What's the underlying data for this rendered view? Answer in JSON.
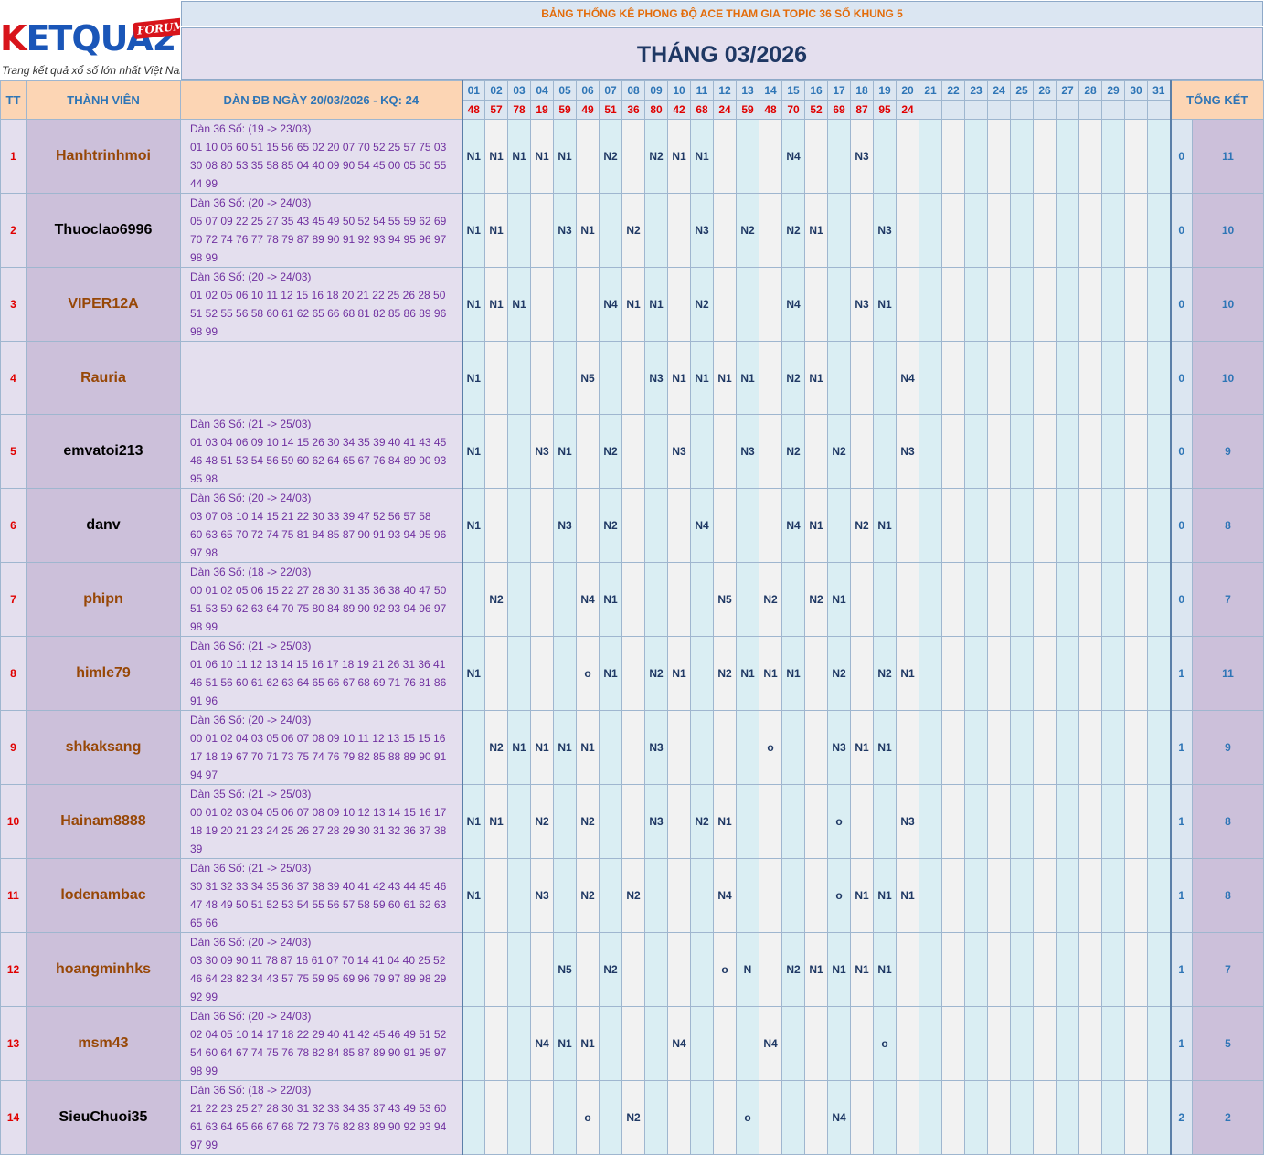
{
  "logo": {
    "big_k": "K",
    "big_rest": "ETQUA2",
    "forum": "FORUM",
    "tagline": "Trang kết quả xổ số lớn nhất Việt Nam"
  },
  "header": {
    "title": "BẢNG THỐNG KÊ PHONG ĐỘ ACE THAM GIA TOPIC 36 SỐ KHUNG 5",
    "month": "THÁNG 03/2026",
    "col_tt": "TT",
    "col_member": "THÀNH VIÊN",
    "col_dan": "DÀN ĐB NGÀY 20/03/2026 - KQ: 24",
    "col_total": "TỔNG KẾT"
  },
  "days": [
    "01",
    "02",
    "03",
    "04",
    "05",
    "06",
    "07",
    "08",
    "09",
    "10",
    "11",
    "12",
    "13",
    "14",
    "15",
    "16",
    "17",
    "18",
    "19",
    "20",
    "21",
    "22",
    "23",
    "24",
    "25",
    "26",
    "27",
    "28",
    "29",
    "30",
    "31"
  ],
  "results": [
    "48",
    "57",
    "78",
    "19",
    "59",
    "49",
    "51",
    "36",
    "80",
    "42",
    "68",
    "24",
    "59",
    "48",
    "70",
    "52",
    "69",
    "87",
    "95",
    "24",
    "",
    "",
    "",
    "",
    "",
    "",
    "",
    "",
    "",
    "",
    ""
  ],
  "rows": [
    {
      "tt": "1",
      "name": "Hanhtrinhmoi",
      "name_color": "orange",
      "dan_head": "Dàn 36 Số: (19 -> 23/03)",
      "dan_lines": [
        "01 10 06 60 51 15 56 65 02 20 07 70 52 25 57 75 03",
        "30 08 80 53 35 58 85 04 40 09 90 54 45 00 05 50 55",
        "44 99"
      ],
      "marks": [
        "N1",
        "N1",
        "N1",
        "N1",
        "N1",
        "",
        "N2",
        "",
        "N2",
        "N1",
        "N1",
        "",
        "",
        "",
        "N4",
        "",
        "",
        "N3",
        "",
        "",
        "",
        "",
        "",
        "",
        "",
        "",
        "",
        "",
        "",
        "",
        ""
      ],
      "t1": "0",
      "t2": "11"
    },
    {
      "tt": "2",
      "name": "Thuoclao6996",
      "name_color": "black",
      "dan_head": "Dàn 36 Số: (20 -> 24/03)",
      "dan_lines": [
        "05 07 09 22 25 27 35 43 45 49 50 52 54 55 59 62 69",
        "70 72 74 76 77 78 79 87 89 90 91 92 93 94 95 96 97",
        "98 99"
      ],
      "marks": [
        "N1",
        "N1",
        "",
        "",
        "N3",
        "N1",
        "",
        "N2",
        "",
        "",
        "N3",
        "",
        "N2",
        "",
        "N2",
        "N1",
        "",
        "",
        "N3",
        "",
        "",
        "",
        "",
        "",
        "",
        "",
        "",
        "",
        "",
        "",
        ""
      ],
      "t1": "0",
      "t2": "10"
    },
    {
      "tt": "3",
      "name": "VIPER12A",
      "name_color": "orange",
      "dan_head": "Dàn 36 Số: (20 -> 24/03)",
      "dan_lines": [
        "01 02 05 06 10 11 12 15 16 18 20 21 22 25 26 28 50",
        "51 52 55 56 58 60 61 62 65 66 68 81 82 85 86 89 96",
        "98 99"
      ],
      "marks": [
        "N1",
        "N1",
        "N1",
        "",
        "",
        "",
        "N4",
        "N1",
        "N1",
        "",
        "N2",
        "",
        "",
        "",
        "N4",
        "",
        "",
        "N3",
        "N1",
        "",
        "",
        "",
        "",
        "",
        "",
        "",
        "",
        "",
        "",
        "",
        ""
      ],
      "t1": "0",
      "t2": "10"
    },
    {
      "tt": "4",
      "name": "Rauria",
      "name_color": "orange",
      "dan_head": "",
      "dan_lines": [
        "",
        "",
        ""
      ],
      "marks": [
        "N1",
        "",
        "",
        "",
        "",
        "N5",
        "",
        "",
        "N3",
        "N1",
        "N1",
        "N1",
        "N1",
        "",
        "N2",
        "N1",
        "",
        "",
        "",
        "N4",
        "",
        "",
        "",
        "",
        "",
        "",
        "",
        "",
        "",
        "",
        ""
      ],
      "t1": "0",
      "t2": "10"
    },
    {
      "tt": "5",
      "name": "emvatoi213",
      "name_color": "black",
      "dan_head": "Dàn 36 Số: (21 -> 25/03)",
      "dan_lines": [
        "01 03 04 06 09 10 14 15 26 30 34 35 39 40 41 43 45",
        "46 48 51 53 54 56 59 60 62 64 65 67 76 84 89 90 93",
        "95 98"
      ],
      "marks": [
        "N1",
        "",
        "",
        "N3",
        "N1",
        "",
        "N2",
        "",
        "",
        "N3",
        "",
        "",
        "N3",
        "",
        "N2",
        "",
        "N2",
        "",
        "",
        "N3",
        "",
        "",
        "",
        "",
        "",
        "",
        "",
        "",
        "",
        "",
        ""
      ],
      "t1": "0",
      "t2": "9"
    },
    {
      "tt": "6",
      "name": "danv",
      "name_color": "black",
      "dan_head": "Dàn 36 Số: (20 -> 24/03)",
      "dan_lines": [
        "03 07 08 10 14 15 21 22 30 33 39 47 52 56 57 58",
        "60 63 65 70 72 74 75 81 84 85 87 90 91 93 94 95 96",
        "97 98"
      ],
      "marks": [
        "N1",
        "",
        "",
        "",
        "N3",
        "",
        "N2",
        "",
        "",
        "",
        "N4",
        "",
        "",
        "",
        "N4",
        "N1",
        "",
        "N2",
        "N1",
        "",
        "",
        "",
        "",
        "",
        "",
        "",
        "",
        "",
        "",
        "",
        ""
      ],
      "t1": "0",
      "t2": "8"
    },
    {
      "tt": "7",
      "name": "phipn",
      "name_color": "orange",
      "dan_head": "Dàn 36 Số: (18 -> 22/03)",
      "dan_lines": [
        "00 01 02 05 06 15 22 27 28 30 31 35 36 38 40 47 50",
        "51 53 59 62 63 64 70 75 80 84 89 90 92 93 94 96 97",
        "98 99"
      ],
      "marks": [
        "",
        "N2",
        "",
        "",
        "",
        "N4",
        "N1",
        "",
        "",
        "",
        "",
        "N5",
        "",
        "N2",
        "",
        "N2",
        "N1",
        "",
        "",
        "",
        "",
        "",
        "",
        "",
        "",
        "",
        "",
        "",
        "",
        "",
        ""
      ],
      "t1": "0",
      "t2": "7"
    },
    {
      "tt": "8",
      "name": "himle79",
      "name_color": "orange",
      "dan_head": "Dàn 36 Số: (21 -> 25/03)",
      "dan_lines": [
        "01 06 10 11 12 13 14 15 16 17 18 19 21 26 31 36 41",
        "46 51 56 60 61 62 63 64 65 66 67 68 69 71 76 81 86",
        "91 96"
      ],
      "marks": [
        "N1",
        "",
        "",
        "",
        "",
        "o",
        "N1",
        "",
        "N2",
        "N1",
        "",
        "N2",
        "N1",
        "N1",
        "N1",
        "",
        "N2",
        "",
        "N2",
        "N1",
        "",
        "",
        "",
        "",
        "",
        "",
        "",
        "",
        "",
        "",
        ""
      ],
      "t1": "1",
      "t2": "11"
    },
    {
      "tt": "9",
      "name": "shkaksang",
      "name_color": "orange",
      "dan_head": "Dàn 36 Số: (20 -> 24/03)",
      "dan_lines": [
        "00 01 02 04 03 05 06 07 08 09 10 11 12 13 15 15 16",
        "17 18 19 67 70 71 73 75 74 76 79 82 85 88 89 90 91",
        "94 97"
      ],
      "marks": [
        "",
        "N2",
        "N1",
        "N1",
        "N1",
        "N1",
        "",
        "",
        "N3",
        "",
        "",
        "",
        "",
        "o",
        "",
        "",
        "N3",
        "N1",
        "N1",
        "",
        "",
        "",
        "",
        "",
        "",
        "",
        "",
        "",
        "",
        "",
        ""
      ],
      "t1": "1",
      "t2": "9"
    },
    {
      "tt": "10",
      "name": "Hainam8888",
      "name_color": "orange",
      "dan_head": "Dàn 35 Số: (21 -> 25/03)",
      "dan_lines": [
        "00 01 02 03 04 05 06 07 08 09 10 12 13 14 15 16 17",
        "18 19 20 21 23 24 25 26 27 28 29 30 31 32 36 37 38",
        "39"
      ],
      "marks": [
        "N1",
        "N1",
        "",
        "N2",
        "",
        "N2",
        "",
        "",
        "N3",
        "",
        "N2",
        "N1",
        "",
        "",
        "",
        "",
        "o",
        "",
        "",
        "N3",
        "",
        "",
        "",
        "",
        "",
        "",
        "",
        "",
        "",
        "",
        ""
      ],
      "t1": "1",
      "t2": "8"
    },
    {
      "tt": "11",
      "name": "lodenambac",
      "name_color": "orange",
      "dan_head": "Dàn 36 Số: (21 -> 25/03)",
      "dan_lines": [
        "30 31 32 33 34 35 36 37 38 39 40 41 42 43 44 45 46",
        "47 48 49 50 51 52 53 54 55 56 57 58 59 60 61 62 63",
        "65 66"
      ],
      "marks": [
        "N1",
        "",
        "",
        "N3",
        "",
        "N2",
        "",
        "N2",
        "",
        "",
        "",
        "N4",
        "",
        "",
        "",
        "",
        "o",
        "N1",
        "N1",
        "N1",
        "",
        "",
        "",
        "",
        "",
        "",
        "",
        "",
        "",
        "",
        ""
      ],
      "t1": "1",
      "t2": "8"
    },
    {
      "tt": "12",
      "name": "hoangminhks",
      "name_color": "orange",
      "dan_head": "Dàn 36 Số: (20 -> 24/03)",
      "dan_lines": [
        "03 30 09 90 11 78 87 16 61 07 70 14 41 04 40 25 52",
        "46 64 28 82 34 43 57 75 59 95 69 96 79 97 89 98 29",
        "92 99"
      ],
      "marks": [
        "",
        "",
        "",
        "",
        "N5",
        "",
        "N2",
        "",
        "",
        "",
        "",
        "o",
        "N",
        "",
        "N2",
        "N1",
        "N1",
        "N1",
        "N1",
        "",
        "",
        "",
        "",
        "",
        "",
        "",
        "",
        "",
        "",
        "",
        ""
      ],
      "t1": "1",
      "t2": "7"
    },
    {
      "tt": "13",
      "name": "msm43",
      "name_color": "orange",
      "dan_head": "Dàn 36 Số: (20 -> 24/03)",
      "dan_lines": [
        "02 04 05 10 14 17 18 22 29 40 41 42 45 46 49 51 52",
        "54 60 64 67 74 75 76 78 82 84 85 87 89 90 91 95 97",
        "98 99"
      ],
      "marks": [
        "",
        "",
        "",
        "N4",
        "N1",
        "N1",
        "",
        "",
        "",
        "N4",
        "",
        "",
        "",
        "N4",
        "",
        "",
        "",
        "",
        "o",
        "",
        "",
        "",
        "",
        "",
        "",
        "",
        "",
        "",
        "",
        "",
        ""
      ],
      "t1": "1",
      "t2": "5"
    },
    {
      "tt": "14",
      "name": "SieuChuoi35",
      "name_color": "black",
      "dan_head": "Dàn 36 Số: (18 -> 22/03)",
      "dan_lines": [
        "21 22 23 25 27 28 30 31 32 33 34 35 37 43 49 53 60",
        "61 63 64 65 66 67 68 72 73 76 82 83 89 90 92 93 94",
        "97 99"
      ],
      "marks": [
        "",
        "",
        "",
        "",
        "",
        "o",
        "",
        "N2",
        "",
        "",
        "",
        "",
        "o",
        "",
        "",
        "",
        "N4",
        "",
        "",
        "",
        "",
        "",
        "",
        "",
        "",
        "",
        "",
        "",
        "",
        "",
        ""
      ],
      "t1": "2",
      "t2": "2"
    }
  ]
}
